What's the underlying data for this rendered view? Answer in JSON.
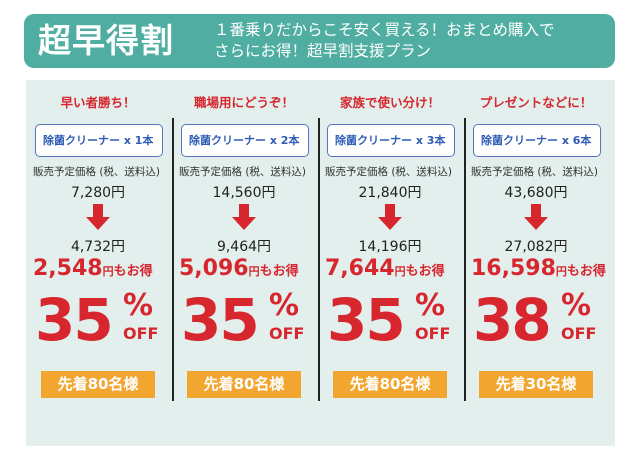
{
  "header": {
    "title": "超早得割",
    "subtitle": "１番乗りだからこそ安く買える！おまとめ購入で\nさらにお得！超早割支援プラン"
  },
  "price_note": "販売予定価格 (税、送料込)",
  "colors": {
    "header": "#4faea1",
    "panel": "#e2efed",
    "accent_red": "#d7262e",
    "product_blue": "#2f5db6",
    "badge": "#f2a630"
  },
  "plans": [
    {
      "heading": "早い者勝ち！",
      "product": "除菌クリーナー x 1本",
      "original_price": "7,280円",
      "sale_price": "4,732円",
      "savings_amount": "2,548",
      "savings_yen": "円",
      "savings_suffix": "もお得",
      "discount_number": "35",
      "discount_sign": "%",
      "discount_off": "OFF",
      "limit": "先着80名様"
    },
    {
      "heading": "職場用にどうぞ！",
      "product": "除菌クリーナー x 2本",
      "original_price": "14,560円",
      "sale_price": "9,464円",
      "savings_amount": "5,096",
      "savings_yen": "円",
      "savings_suffix": "もお得",
      "discount_number": "35",
      "discount_sign": "%",
      "discount_off": "OFF",
      "limit": "先着80名様"
    },
    {
      "heading": "家族で使い分け！",
      "product": "除菌クリーナー x 3本",
      "original_price": "21,840円",
      "sale_price": "14,196円",
      "savings_amount": "7,644",
      "savings_yen": "円",
      "savings_suffix": "もお得",
      "discount_number": "35",
      "discount_sign": "%",
      "discount_off": "OFF",
      "limit": "先着80名様"
    },
    {
      "heading": "プレゼントなどに！",
      "product": "除菌クリーナー x 6本",
      "original_price": "43,680円",
      "sale_price": "27,082円",
      "savings_amount": "16,598",
      "savings_yen": "円",
      "savings_suffix": "もお得",
      "discount_number": "38",
      "discount_sign": "%",
      "discount_off": "OFF",
      "limit": "先着30名様"
    }
  ]
}
